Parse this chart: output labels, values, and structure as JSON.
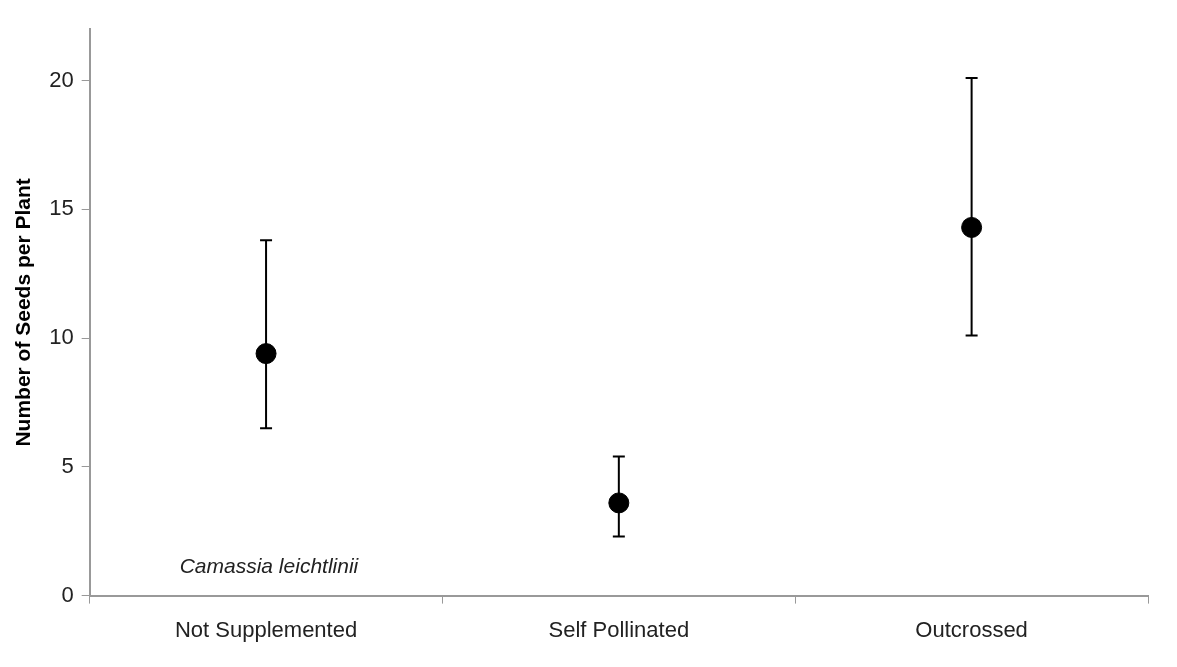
{
  "chart_data": {
    "type": "scatter",
    "ylabel": "Number of Seeds per Plant",
    "categories": [
      "Not Supplemented",
      "Self Pollinated",
      "Outcrossed"
    ],
    "values": [
      9.4,
      3.6,
      14.3
    ],
    "errors": [
      [
        6.5,
        13.8
      ],
      [
        2.3,
        5.4
      ],
      [
        10.1,
        20.1
      ]
    ],
    "color": "#000000",
    "marker": "circle",
    "ylim": [
      0,
      22
    ],
    "yticks": [
      0,
      5,
      10,
      15,
      20
    ],
    "grid": false,
    "legend": false,
    "annotations": [
      "Camassia leichtlinii"
    ]
  }
}
